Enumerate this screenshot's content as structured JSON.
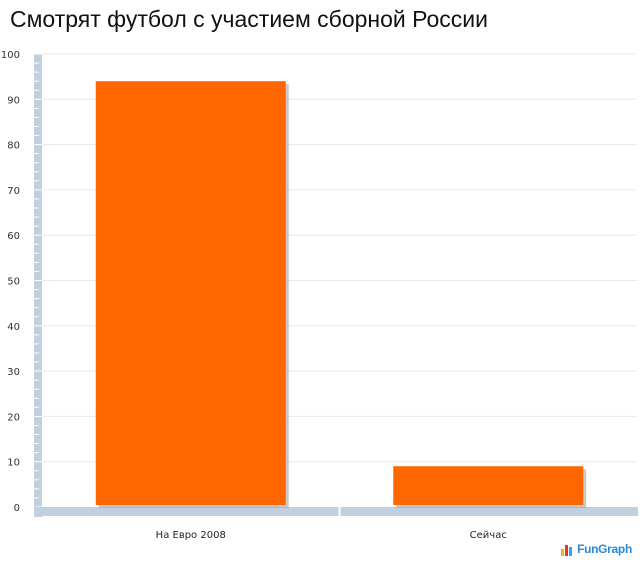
{
  "chart_data": {
    "type": "bar",
    "title": "Смотрят футбол с участием сборной России",
    "xlabel": "",
    "ylabel": "",
    "categories": [
      "На Евро 2008",
      "Сейчас"
    ],
    "values": [
      94,
      9
    ],
    "ylim": [
      0,
      100
    ],
    "yticks": [
      0,
      10,
      20,
      30,
      40,
      50,
      60,
      70,
      80,
      90,
      100
    ],
    "grid": true,
    "legend": "none",
    "colors": {
      "bar": "#ff6600",
      "axis": "#c0d0de",
      "grid": "#e6eaee"
    }
  },
  "watermark": {
    "text": "FunGraph",
    "icon": "bar-chart-logo-icon"
  }
}
